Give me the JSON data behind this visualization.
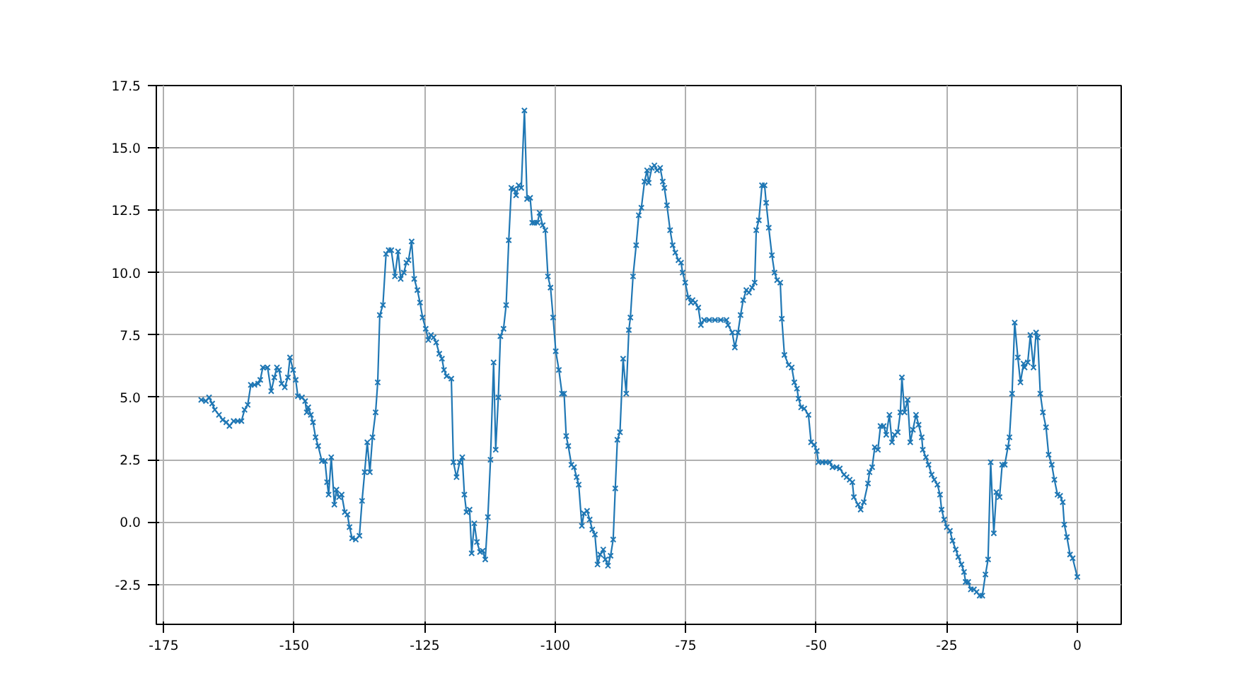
{
  "chart_data": {
    "type": "line",
    "marker": "cross",
    "line_style": "solid",
    "grid": true,
    "xlim": [
      -176.4,
      8.4
    ],
    "ylim": [
      -4.1,
      17.5
    ],
    "xticks": [
      -175,
      -150,
      -125,
      -100,
      -75,
      -50,
      -25,
      0
    ],
    "yticks": [
      {
        "value": -2.5,
        "label": "-2.5"
      },
      {
        "value": 0,
        "label": "0.0"
      },
      {
        "value": 2.5,
        "label": "2.5"
      },
      {
        "value": 5,
        "label": "5.0"
      },
      {
        "value": 7.5,
        "label": "7.5"
      },
      {
        "value": 10,
        "label": "10.0"
      },
      {
        "value": 12.5,
        "label": "12.5"
      },
      {
        "value": 15,
        "label": "15.0"
      },
      {
        "value": 17.5,
        "label": "17.5"
      }
    ],
    "series": [
      {
        "color": "#1f77b4",
        "x": [
          -167.8,
          -166.9,
          -166.3,
          -165.7,
          -165.2,
          -164.4,
          -163.7,
          -163.0,
          -162.4,
          -161.6,
          -160.8,
          -160.1,
          -159.5,
          -158.9,
          -158.3,
          -157.6,
          -156.9,
          -156.5,
          -156.0,
          -155.1,
          -154.4,
          -153.8,
          -153.3,
          -152.9,
          -152.4,
          -151.8,
          -151.2,
          -150.8,
          -150.2,
          -149.7,
          -149.3,
          -148.5,
          -147.9,
          -147.6,
          -147.3,
          -146.8,
          -146.4,
          -145.9,
          -145.4,
          -144.7,
          -144.1,
          -143.7,
          -143.4,
          -142.9,
          -142.3,
          -141.9,
          -141.4,
          -140.9,
          -140.3,
          -139.8,
          -139.4,
          -138.9,
          -138.2,
          -137.5,
          -137.0,
          -136.5,
          -136.0,
          -135.5,
          -135.0,
          -134.4,
          -134.0,
          -133.6,
          -133.0,
          -132.4,
          -131.9,
          -131.4,
          -130.7,
          -130.1,
          -129.6,
          -129.0,
          -128.5,
          -128.1,
          -127.5,
          -127.0,
          -126.4,
          -125.9,
          -125.4,
          -124.8,
          -124.3,
          -123.8,
          -123.3,
          -122.8,
          -122.2,
          -121.7,
          -121.3,
          -120.8,
          -119.9,
          -119.5,
          -118.9,
          -118.3,
          -117.8,
          -117.4,
          -117.0,
          -116.4,
          -116.0,
          -115.5,
          -115.0,
          -114.4,
          -113.9,
          -113.4,
          -112.9,
          -112.4,
          -111.8,
          -111.4,
          -110.9,
          -110.5,
          -109.9,
          -109.4,
          -108.9,
          -108.4,
          -107.9,
          -107.5,
          -107.0,
          -106.5,
          -105.9,
          -105.4,
          -104.8,
          -104.4,
          -104.0,
          -103.4,
          -103.0,
          -102.4,
          -101.9,
          -101.4,
          -100.9,
          -100.4,
          -99.9,
          -99.3,
          -98.7,
          -98.3,
          -97.9,
          -97.5,
          -96.9,
          -96.4,
          -95.9,
          -95.5,
          -94.9,
          -94.5,
          -93.9,
          -93.4,
          -92.9,
          -92.4,
          -91.9,
          -91.4,
          -90.8,
          -90.4,
          -89.9,
          -89.4,
          -88.9,
          -88.5,
          -88.1,
          -87.6,
          -87.0,
          -86.4,
          -85.9,
          -85.6,
          -85.1,
          -84.5,
          -84.0,
          -83.5,
          -82.9,
          -82.4,
          -82.1,
          -81.5,
          -81.0,
          -80.5,
          -79.9,
          -79.4,
          -79.1,
          -78.6,
          -78.0,
          -77.5,
          -77.0,
          -76.4,
          -75.9,
          -75.6,
          -75.1,
          -74.5,
          -74.0,
          -73.7,
          -73.2,
          -72.6,
          -72.1,
          -71.5,
          -70.5,
          -69.4,
          -68.3,
          -67.2,
          -66.9,
          -66.1,
          -65.6,
          -65.0,
          -64.5,
          -64.0,
          -63.4,
          -62.9,
          -62.3,
          -61.8,
          -61.5,
          -61.0,
          -60.4,
          -59.9,
          -59.6,
          -59.1,
          -58.5,
          -58.0,
          -57.5,
          -56.9,
          -56.6,
          -56.1,
          -55.3,
          -54.7,
          -54.2,
          -53.7,
          -53.4,
          -52.9,
          -52.3,
          -51.5,
          -51.0,
          -50.4,
          -49.9,
          -49.6,
          -48.8,
          -48.2,
          -47.4,
          -46.9,
          -46.1,
          -45.5,
          -44.7,
          -44.2,
          -43.6,
          -43.1,
          -42.8,
          -42.0,
          -41.5,
          -40.9,
          -40.1,
          -39.8,
          -39.3,
          -38.8,
          -38.2,
          -37.7,
          -37.1,
          -36.6,
          -36.0,
          -35.5,
          -35.0,
          -34.4,
          -33.9,
          -33.6,
          -33.1,
          -32.5,
          -32.0,
          -31.5,
          -30.9,
          -30.4,
          -29.8,
          -29.6,
          -29.0,
          -28.5,
          -27.9,
          -27.4,
          -26.8,
          -26.3,
          -26.0,
          -25.5,
          -25.0,
          -24.4,
          -23.9,
          -23.3,
          -22.8,
          -22.2,
          -21.7,
          -21.4,
          -20.9,
          -20.4,
          -19.8,
          -19.3,
          -18.7,
          -18.2,
          -17.6,
          -17.1,
          -16.6,
          -16.0,
          -15.5,
          -14.9,
          -14.4,
          -13.9,
          -13.3,
          -13.0,
          -12.5,
          -12.0,
          -11.4,
          -10.9,
          -10.3,
          -10.1,
          -9.5,
          -9.0,
          -8.4,
          -7.9,
          -7.6,
          -7.1,
          -6.6,
          -6.0,
          -5.5,
          -4.9,
          -4.4,
          -3.8,
          -3.3,
          -2.8,
          -2.5,
          -2.0,
          -1.4,
          -0.9,
          0.0
        ],
        "values": [
          4.9,
          4.85,
          5.0,
          4.75,
          4.5,
          4.3,
          4.1,
          4.0,
          3.85,
          4.05,
          4.05,
          4.05,
          4.5,
          4.7,
          5.5,
          5.5,
          5.55,
          5.7,
          6.2,
          6.2,
          5.25,
          5.8,
          6.2,
          6.1,
          5.55,
          5.4,
          5.8,
          6.6,
          6.1,
          5.7,
          5.05,
          5.0,
          4.85,
          4.4,
          4.6,
          4.3,
          4.0,
          3.4,
          3.05,
          2.45,
          2.45,
          1.6,
          1.1,
          2.6,
          0.7,
          1.3,
          1.0,
          1.1,
          0.4,
          0.3,
          -0.2,
          -0.65,
          -0.7,
          -0.55,
          0.85,
          2.0,
          3.2,
          2.0,
          3.4,
          4.4,
          5.6,
          8.3,
          8.7,
          10.75,
          10.9,
          10.9,
          9.85,
          10.85,
          9.75,
          10.0,
          10.4,
          10.5,
          11.25,
          9.75,
          9.3,
          8.8,
          8.2,
          7.75,
          7.3,
          7.5,
          7.4,
          7.2,
          6.75,
          6.55,
          6.1,
          5.85,
          5.75,
          2.4,
          1.8,
          2.4,
          2.6,
          1.1,
          0.4,
          0.5,
          -1.25,
          -0.05,
          -0.8,
          -1.2,
          -1.15,
          -1.5,
          0.2,
          2.5,
          6.4,
          2.9,
          5.0,
          7.45,
          7.75,
          8.7,
          11.3,
          13.4,
          13.35,
          13.1,
          13.5,
          13.4,
          16.5,
          12.95,
          13.0,
          12.0,
          12.0,
          12.0,
          12.4,
          11.9,
          11.7,
          9.85,
          9.4,
          8.2,
          6.85,
          6.1,
          5.15,
          5.15,
          3.45,
          3.05,
          2.3,
          2.2,
          1.8,
          1.5,
          -0.15,
          0.35,
          0.45,
          0.1,
          -0.3,
          -0.5,
          -1.7,
          -1.3,
          -1.1,
          -1.5,
          -1.75,
          -1.35,
          -0.7,
          1.35,
          3.3,
          3.6,
          6.55,
          5.15,
          7.7,
          8.2,
          9.85,
          11.1,
          12.3,
          12.6,
          13.65,
          14.1,
          13.6,
          14.2,
          14.3,
          14.1,
          14.2,
          13.65,
          13.4,
          12.7,
          11.7,
          11.1,
          10.8,
          10.5,
          10.4,
          10.0,
          9.6,
          9.0,
          8.8,
          8.9,
          8.8,
          8.6,
          7.9,
          8.1,
          8.1,
          8.1,
          8.1,
          8.1,
          7.9,
          7.6,
          7.0,
          7.6,
          8.3,
          8.9,
          9.3,
          9.2,
          9.4,
          9.6,
          11.7,
          12.1,
          13.5,
          13.5,
          12.8,
          11.8,
          10.7,
          10.0,
          9.7,
          9.6,
          8.15,
          6.7,
          6.3,
          6.2,
          5.6,
          5.35,
          4.95,
          4.6,
          4.55,
          4.3,
          3.2,
          3.1,
          2.85,
          2.4,
          2.4,
          2.4,
          2.4,
          2.2,
          2.2,
          2.15,
          1.9,
          1.8,
          1.7,
          1.6,
          1.0,
          0.7,
          0.5,
          0.8,
          1.55,
          2.0,
          2.2,
          3.0,
          2.9,
          3.85,
          3.85,
          3.5,
          4.3,
          3.2,
          3.5,
          3.6,
          4.4,
          5.8,
          4.4,
          4.9,
          3.2,
          3.7,
          4.3,
          3.9,
          3.4,
          2.9,
          2.6,
          2.3,
          1.9,
          1.7,
          1.5,
          1.1,
          0.5,
          0.1,
          -0.2,
          -0.35,
          -0.75,
          -1.1,
          -1.4,
          -1.7,
          -2.0,
          -2.4,
          -2.4,
          -2.7,
          -2.7,
          -2.8,
          -2.95,
          -2.95,
          -2.1,
          -1.5,
          2.4,
          -0.45,
          1.2,
          1.0,
          2.3,
          2.3,
          3.0,
          3.4,
          5.15,
          8.0,
          6.6,
          5.6,
          6.35,
          6.2,
          6.4,
          7.5,
          6.2,
          7.6,
          7.4,
          5.15,
          4.4,
          3.8,
          2.7,
          2.3,
          1.7,
          1.1,
          1.05,
          0.8,
          -0.1,
          -0.6,
          -1.3,
          -1.45,
          -2.2
        ]
      }
    ]
  }
}
